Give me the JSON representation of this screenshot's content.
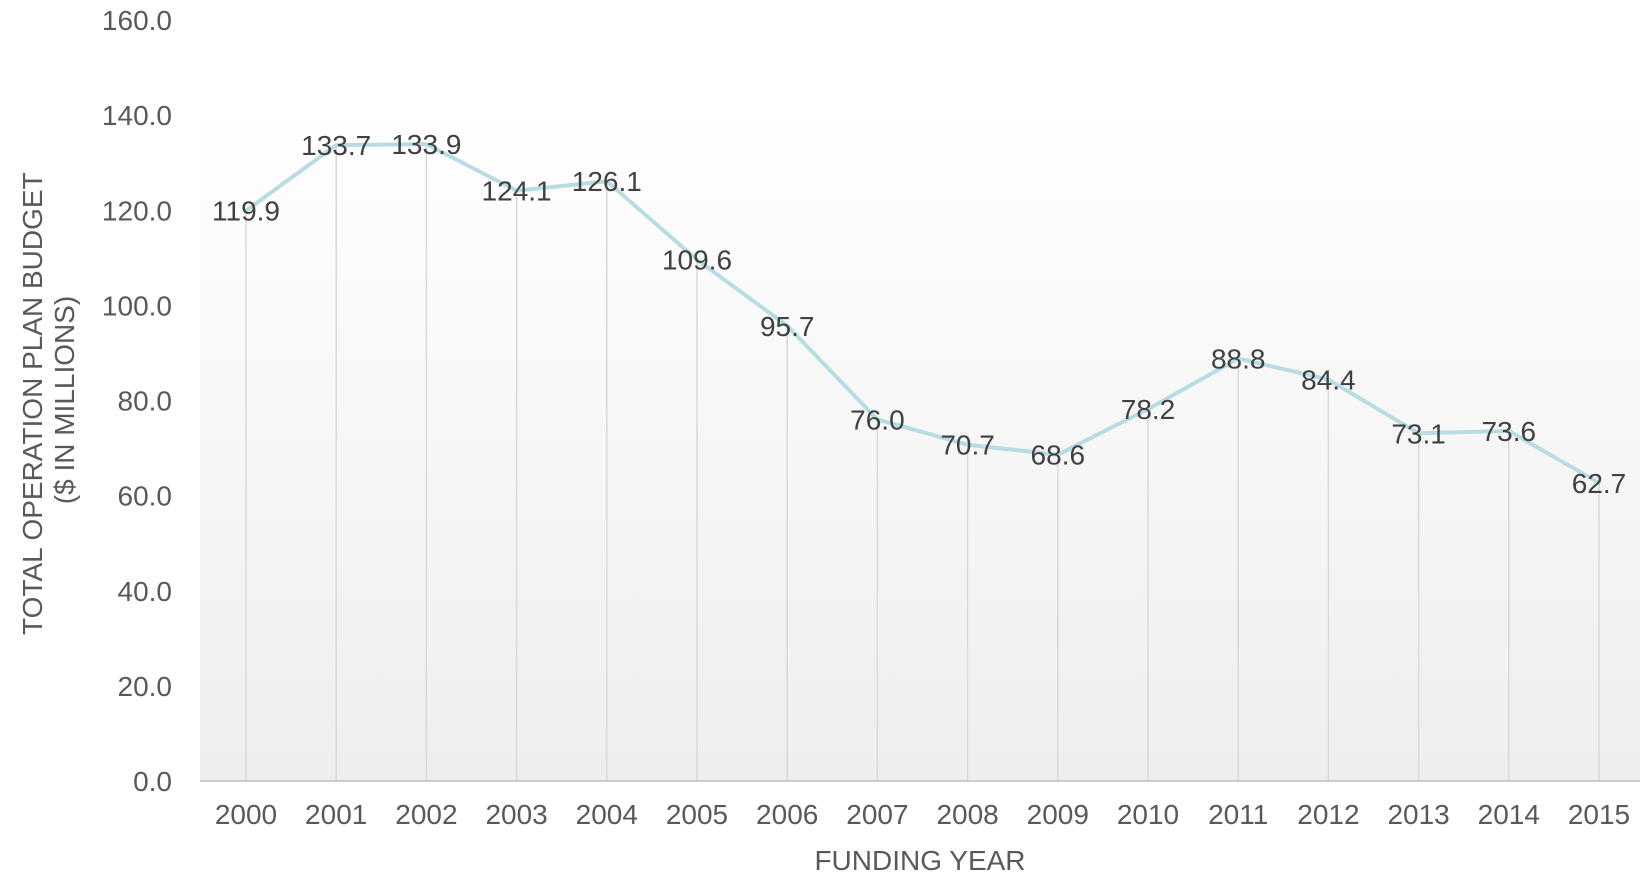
{
  "chart_data": {
    "type": "line",
    "title": "",
    "xlabel": "FUNDING YEAR",
    "ylabel_line1": "TOTAL OPERATION PLAN BUDGET",
    "ylabel_line2": "($ IN MILLIONS)",
    "categories": [
      "2000",
      "2001",
      "2002",
      "2003",
      "2004",
      "2005",
      "2006",
      "2007",
      "2008",
      "2009",
      "2010",
      "2011",
      "2012",
      "2013",
      "2014",
      "2015"
    ],
    "series": [
      {
        "values": [
          119.9,
          133.7,
          133.9,
          124.1,
          126.1,
          109.6,
          95.7,
          76.0,
          70.7,
          68.6,
          78.2,
          88.8,
          84.4,
          73.1,
          73.6,
          62.7
        ]
      }
    ],
    "ylim": [
      0,
      160
    ],
    "yticks": [
      "0.0",
      "20.0",
      "40.0",
      "60.0",
      "80.0",
      "100.0",
      "120.0",
      "140.0",
      "160.0"
    ],
    "grid": "vertical drop lines",
    "line_color": "#b7dde3",
    "drop_line_color": "#d9d9d9",
    "plot_background": "gradient white to light gray"
  }
}
